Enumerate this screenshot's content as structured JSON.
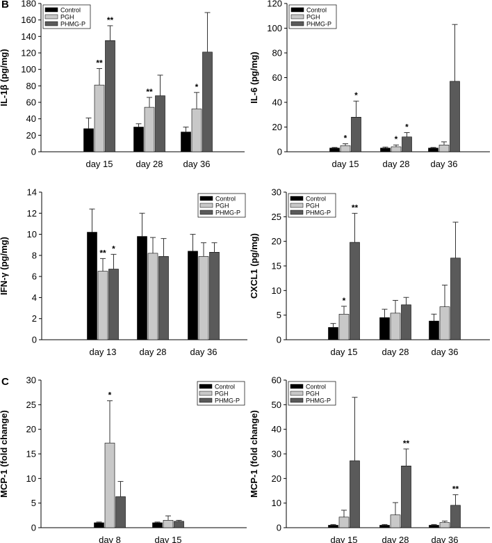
{
  "panel_letters": [
    "B",
    "C"
  ],
  "series_names": [
    "Control",
    "PGH",
    "PHMG-P"
  ],
  "series_colors": [
    "#000000",
    "#c8c8c8",
    "#5a5a5a"
  ],
  "chart_data": [
    {
      "type": "bar",
      "id": "il1b",
      "ylabel": "IL-1β (pg/mg)",
      "ylim": [
        0,
        180
      ],
      "yticks": [
        0,
        20,
        40,
        60,
        80,
        100,
        120,
        140,
        160,
        180
      ],
      "categories": [
        "day 15",
        "day 28",
        "day 36"
      ],
      "series": [
        {
          "name": "Control",
          "values": [
            28,
            30,
            24
          ],
          "errors": [
            13,
            4,
            6
          ],
          "significance": [
            "",
            "",
            ""
          ]
        },
        {
          "name": "PGH",
          "values": [
            81,
            54,
            52
          ],
          "errors": [
            20,
            12,
            20
          ],
          "significance": [
            "**",
            "**",
            "*"
          ]
        },
        {
          "name": "PHMG-P",
          "values": [
            135,
            68,
            121
          ],
          "errors": [
            18,
            25,
            48
          ],
          "significance": [
            "**",
            "",
            ""
          ]
        }
      ]
    },
    {
      "type": "bar",
      "id": "il6",
      "ylabel": "IL-6 (pg/mg)",
      "ylim": [
        0,
        120
      ],
      "yticks": [
        0,
        20,
        40,
        60,
        80,
        100,
        120
      ],
      "categories": [
        "day 15",
        "day 28",
        "day 36"
      ],
      "series": [
        {
          "name": "Control",
          "values": [
            3,
            3,
            3
          ],
          "errors": [
            0.5,
            0.8,
            0.5
          ],
          "significance": [
            "",
            "",
            ""
          ]
        },
        {
          "name": "PGH",
          "values": [
            5,
            4,
            5.5
          ],
          "errors": [
            1.5,
            1.5,
            2.5
          ],
          "significance": [
            "*",
            "*",
            ""
          ]
        },
        {
          "name": "PHMG-P",
          "values": [
            28,
            12,
            57
          ],
          "errors": [
            13,
            3.5,
            46
          ],
          "significance": [
            "*",
            "*",
            ""
          ]
        }
      ]
    },
    {
      "type": "bar",
      "id": "ifng",
      "ylabel": "IFN-γ (pg/mg)",
      "ylim": [
        0,
        14
      ],
      "yticks": [
        0,
        2,
        4,
        6,
        8,
        10,
        12,
        14
      ],
      "categories": [
        "day 13",
        "day 28",
        "day 36"
      ],
      "series": [
        {
          "name": "Control",
          "values": [
            10.2,
            9.8,
            8.4
          ],
          "errors": [
            2.2,
            2.2,
            1.6
          ],
          "significance": [
            "",
            "",
            ""
          ]
        },
        {
          "name": "PGH",
          "values": [
            6.5,
            8.2,
            7.9
          ],
          "errors": [
            1.2,
            1.5,
            1.3
          ],
          "significance": [
            "**",
            "",
            ""
          ]
        },
        {
          "name": "PHMG-P",
          "values": [
            6.7,
            7.9,
            8.3
          ],
          "errors": [
            1.4,
            1.7,
            0.9
          ],
          "significance": [
            "*",
            "",
            ""
          ]
        }
      ]
    },
    {
      "type": "bar",
      "id": "cxcl1",
      "ylabel": "CXCL1 (pg/mg)",
      "ylim": [
        0,
        30
      ],
      "yticks": [
        0,
        5,
        10,
        15,
        20,
        25,
        30
      ],
      "categories": [
        "day 15",
        "day 28",
        "day 36"
      ],
      "series": [
        {
          "name": "Control",
          "values": [
            2.5,
            4.5,
            3.8
          ],
          "errors": [
            0.8,
            1.7,
            1.4
          ],
          "significance": [
            "",
            "",
            ""
          ]
        },
        {
          "name": "PGH",
          "values": [
            5.2,
            5.4,
            6.7
          ],
          "errors": [
            1.6,
            2.6,
            4.4
          ],
          "significance": [
            "*",
            "",
            ""
          ]
        },
        {
          "name": "PHMG-P",
          "values": [
            19.8,
            7.1,
            16.6
          ],
          "errors": [
            5.9,
            1.5,
            7.3
          ],
          "significance": [
            "**",
            "",
            ""
          ]
        }
      ]
    },
    {
      "type": "bar",
      "id": "mcp1a",
      "ylabel": "MCP-1 (fold change)",
      "ylim": [
        0,
        30
      ],
      "yticks": [
        0,
        5,
        10,
        15,
        20,
        25,
        30
      ],
      "categories": [
        "day 8",
        "day 15"
      ],
      "series": [
        {
          "name": "Control",
          "values": [
            1,
            1
          ],
          "errors": [
            0.15,
            0.15
          ],
          "significance": [
            "",
            ""
          ]
        },
        {
          "name": "PGH",
          "values": [
            17.2,
            1.5
          ],
          "errors": [
            8.6,
            0.9
          ],
          "significance": [
            "*",
            ""
          ]
        },
        {
          "name": "PHMG-P",
          "values": [
            6.3,
            1.3
          ],
          "errors": [
            3.1,
            0.2
          ],
          "significance": [
            "",
            ""
          ]
        }
      ]
    },
    {
      "type": "bar",
      "id": "mcp1b",
      "ylabel": "MCP-1 (fold change)",
      "ylim": [
        0,
        60
      ],
      "yticks": [
        0,
        10,
        20,
        30,
        40,
        50,
        60
      ],
      "categories": [
        "day 15",
        "day 28",
        "day 36"
      ],
      "series": [
        {
          "name": "Control",
          "values": [
            1,
            1,
            1
          ],
          "errors": [
            0.3,
            0.3,
            0.3
          ],
          "significance": [
            "",
            "",
            ""
          ]
        },
        {
          "name": "PGH",
          "values": [
            4.3,
            5.2,
            2.1
          ],
          "errors": [
            2.8,
            5,
            0.6
          ],
          "significance": [
            "",
            "",
            ""
          ]
        },
        {
          "name": "PHMG-P",
          "values": [
            27.2,
            25.1,
            9.1
          ],
          "errors": [
            25.8,
            6.9,
            4.3
          ],
          "significance": [
            "",
            "**",
            "**"
          ]
        }
      ]
    }
  ]
}
